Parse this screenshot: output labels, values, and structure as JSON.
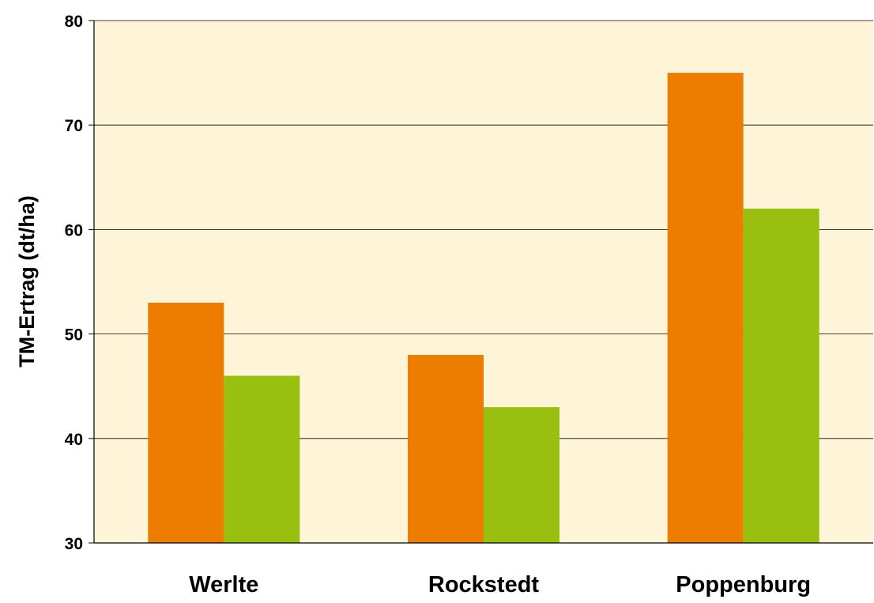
{
  "chart_data": {
    "type": "bar",
    "title": "",
    "xlabel": "",
    "ylabel": "TM-Ertrag (dt/ha)",
    "categories": [
      "Werlte",
      "Rockstedt",
      "Poppenburg"
    ],
    "series": [
      {
        "values": [
          53,
          48,
          75
        ],
        "color": "#ED7D00"
      },
      {
        "values": [
          46,
          43,
          62
        ],
        "color": "#99C010"
      }
    ],
    "ylim": [
      30,
      80
    ],
    "yticks": [
      "30",
      "40",
      "50",
      "60",
      "70",
      "80"
    ],
    "grid": true,
    "legend": "none",
    "plot_background": "#FEF4D8"
  }
}
